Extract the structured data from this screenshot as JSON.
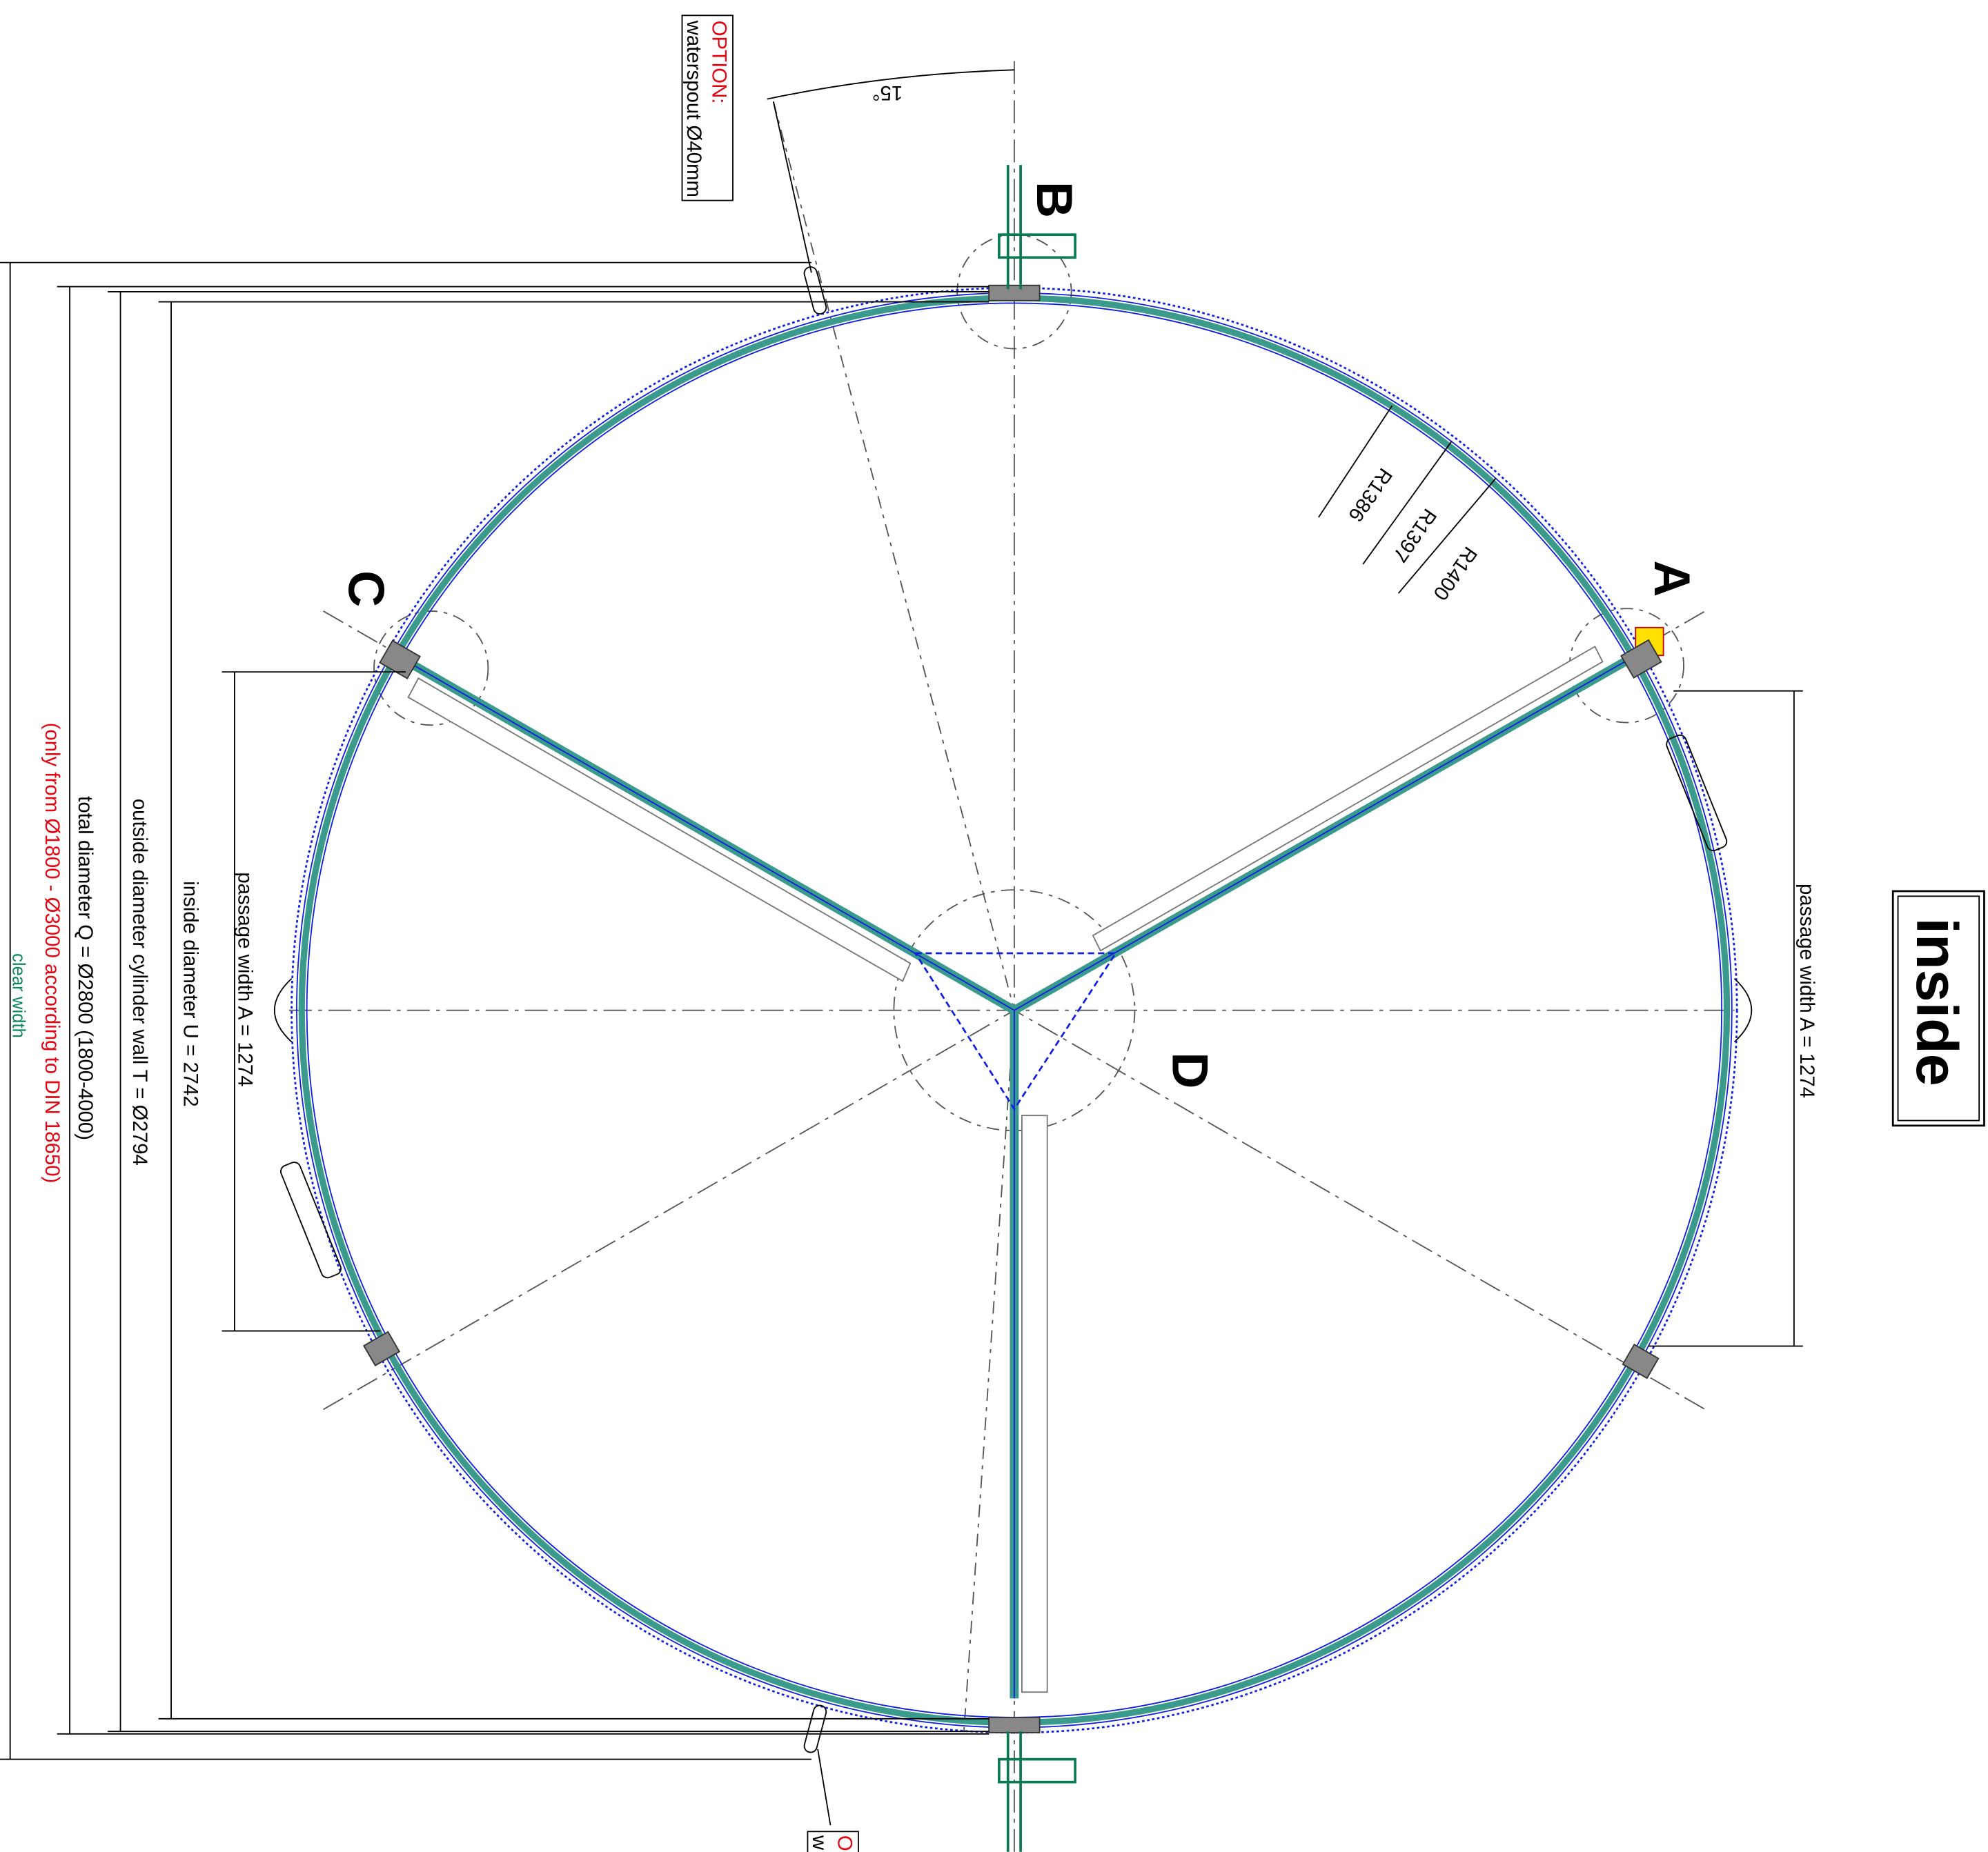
{
  "option_top": {
    "title": "OPTION:",
    "text": "waterspout Ø40mm"
  },
  "option_bottom": {
    "title": "O",
    "text": "w"
  },
  "angle": "15°",
  "points": {
    "a": "A",
    "b": "B",
    "c": "C",
    "d": "D"
  },
  "radii": [
    "R1386",
    "R1397",
    "R1400"
  ],
  "side_label": "inside",
  "right_dimension": "passage width A = 1274",
  "left_dimensions": {
    "passage": "passage width A = 1274",
    "inside": "inside diameter U = 2742",
    "outside": "outside diameter cylinder wall T = Ø2794",
    "total": "total diameter Q = Ø2800 (1800-4000)",
    "note": "(only from Ø1800 - Ø3000 according to DIN 18650)",
    "clear": "clear width"
  }
}
